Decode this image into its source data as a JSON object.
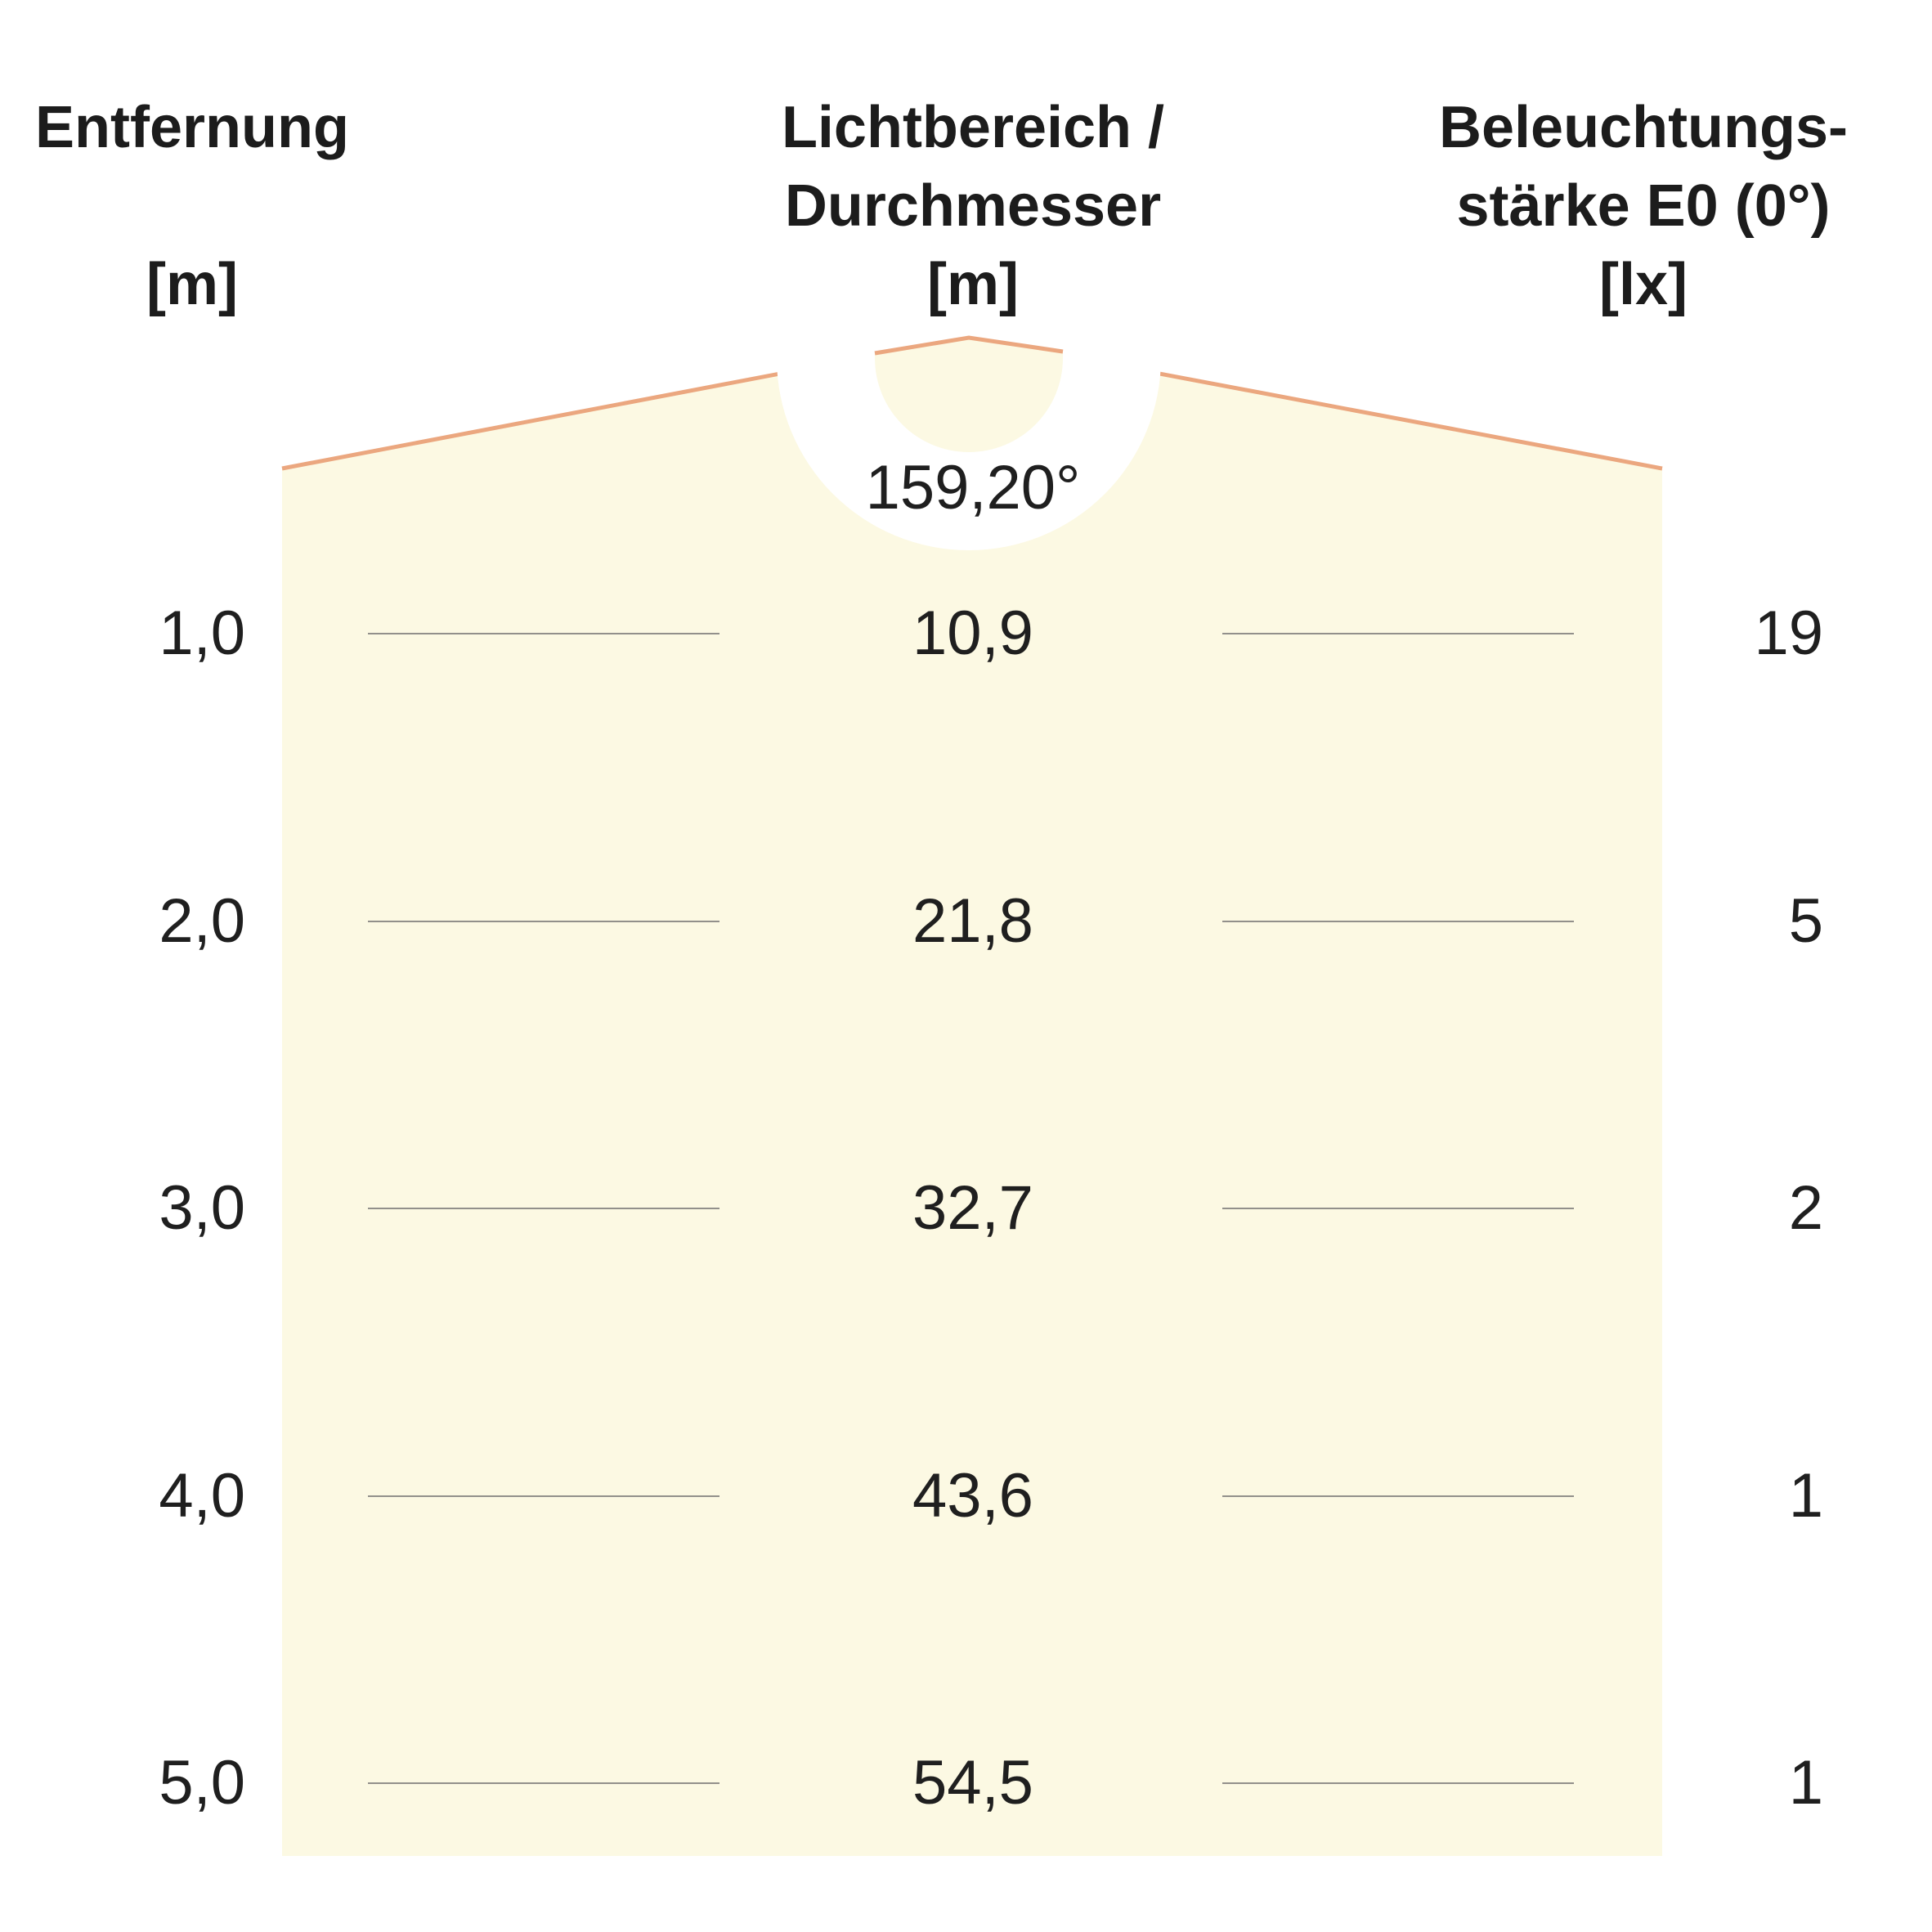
{
  "headers": {
    "distance": {
      "line1": "Entfernung",
      "line2": "",
      "unit": "[m]"
    },
    "diameter": {
      "line1": "Lichtbereich /",
      "line2": "Durchmesser",
      "unit": "[m]"
    },
    "illuminance": {
      "line1": "Beleuchtungs-",
      "line2": "stärke E0 (0°)",
      "unit": "[lx]"
    }
  },
  "beam_angle": "159,20°",
  "rows": [
    {
      "distance": "1,0",
      "diameter": "10,9",
      "illuminance": "19"
    },
    {
      "distance": "2,0",
      "diameter": "21,8",
      "illuminance": "5"
    },
    {
      "distance": "3,0",
      "diameter": "32,7",
      "illuminance": "2"
    },
    {
      "distance": "4,0",
      "diameter": "43,6",
      "illuminance": "1"
    },
    {
      "distance": "5,0",
      "diameter": "54,5",
      "illuminance": "1"
    }
  ],
  "colors": {
    "light_area": "#fcf9e3",
    "beam_edge": "#eba77f",
    "divider": "#6e6e6e",
    "text": "#1f1f1f"
  }
}
